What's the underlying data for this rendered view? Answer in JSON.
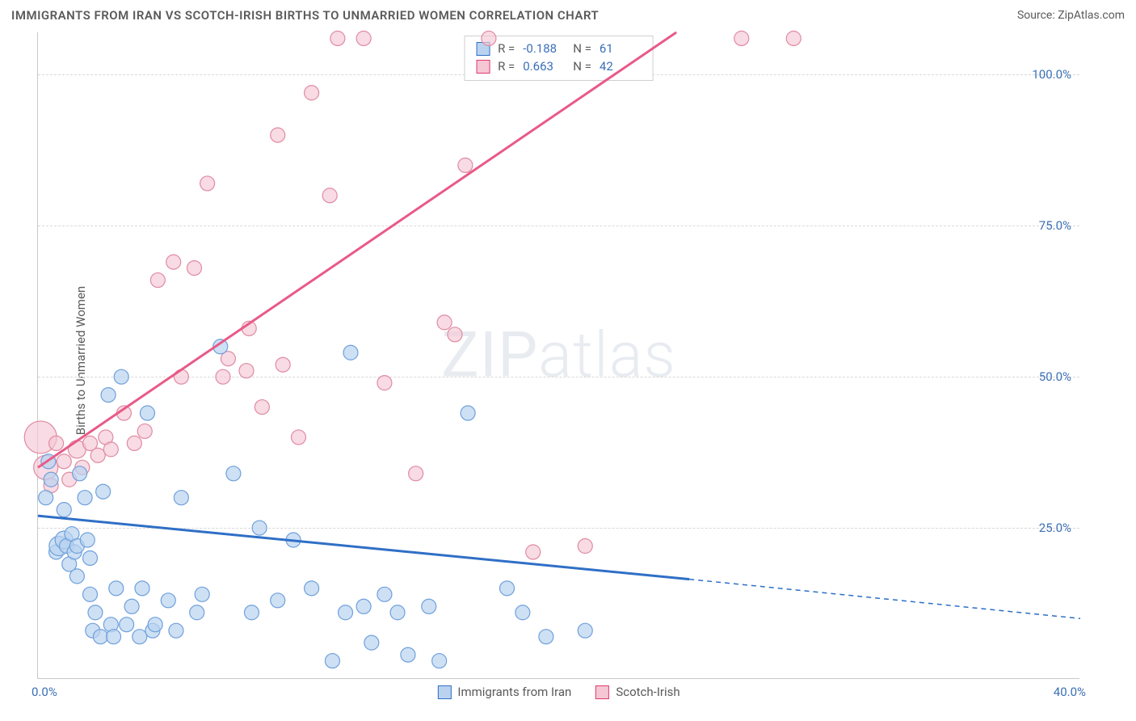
{
  "header": {
    "title": "IMMIGRANTS FROM IRAN VS SCOTCH-IRISH BIRTHS TO UNMARRIED WOMEN CORRELATION CHART",
    "source": "Source: ZipAtlas.com"
  },
  "watermark_a": "ZIP",
  "watermark_b": "atlas",
  "chart": {
    "type": "scatter",
    "background_color": "#ffffff",
    "grid_color": "#d9d9d9",
    "axis_color": "#c8c8c8",
    "ylabel": "Births to Unmarried Women",
    "ylabel_fontsize": 15,
    "tick_fontsize": 15,
    "tick_color": "#3b6fb6",
    "xlim": [
      0,
      40
    ],
    "ylim": [
      0,
      107
    ],
    "x_ticks": [
      {
        "v": 0,
        "label": "0.0%"
      },
      {
        "v": 40,
        "label": "40.0%"
      }
    ],
    "y_ticks": [
      {
        "v": 25,
        "label": "25.0%"
      },
      {
        "v": 50,
        "label": "50.0%"
      },
      {
        "v": 75,
        "label": "75.0%"
      },
      {
        "v": 100,
        "label": "100.0%"
      }
    ],
    "stats": [
      {
        "swatch_fill": "#b9d3ef",
        "swatch_stroke": "#2f6fc6",
        "r": "-0.188",
        "n": "61"
      },
      {
        "swatch_fill": "#f5c7d5",
        "swatch_stroke": "#e03a6d",
        "r": "0.663",
        "n": "42"
      }
    ],
    "legend": [
      {
        "swatch_fill": "#b9d3ef",
        "swatch_stroke": "#2f6fc6",
        "label": "Immigrants from Iran"
      },
      {
        "swatch_fill": "#f5c7d5",
        "swatch_stroke": "#e03a6d",
        "label": "Scotch-Irish"
      }
    ],
    "series_blue": {
      "point_fill": "#b9d3ef",
      "point_stroke": "#6fa0db",
      "point_fill_opacity": 0.7,
      "default_r": 9,
      "trend": {
        "color": "#2f6fc6",
        "width": 3,
        "x1": 0,
        "y1": 27,
        "x2_solid": 25,
        "y2_solid": 16.5,
        "x2": 40,
        "y2": 10
      },
      "points": [
        {
          "x": 0.3,
          "y": 30
        },
        {
          "x": 0.4,
          "y": 36
        },
        {
          "x": 0.5,
          "y": 33
        },
        {
          "x": 0.7,
          "y": 21
        },
        {
          "x": 0.8,
          "y": 22,
          "r": 12
        },
        {
          "x": 1.0,
          "y": 23,
          "r": 11
        },
        {
          "x": 1.0,
          "y": 28
        },
        {
          "x": 1.1,
          "y": 22
        },
        {
          "x": 1.2,
          "y": 19
        },
        {
          "x": 1.3,
          "y": 24
        },
        {
          "x": 1.4,
          "y": 21
        },
        {
          "x": 1.5,
          "y": 22
        },
        {
          "x": 1.5,
          "y": 17
        },
        {
          "x": 1.6,
          "y": 34
        },
        {
          "x": 1.8,
          "y": 30
        },
        {
          "x": 1.9,
          "y": 23
        },
        {
          "x": 2.0,
          "y": 14
        },
        {
          "x": 2.0,
          "y": 20
        },
        {
          "x": 2.1,
          "y": 8
        },
        {
          "x": 2.2,
          "y": 11
        },
        {
          "x": 2.4,
          "y": 7
        },
        {
          "x": 2.5,
          "y": 31
        },
        {
          "x": 2.7,
          "y": 47
        },
        {
          "x": 2.8,
          "y": 9
        },
        {
          "x": 2.9,
          "y": 7
        },
        {
          "x": 3.0,
          "y": 15
        },
        {
          "x": 3.2,
          "y": 50
        },
        {
          "x": 3.4,
          "y": 9
        },
        {
          "x": 3.6,
          "y": 12
        },
        {
          "x": 3.9,
          "y": 7
        },
        {
          "x": 4.0,
          "y": 15
        },
        {
          "x": 4.2,
          "y": 44
        },
        {
          "x": 4.4,
          "y": 8
        },
        {
          "x": 4.5,
          "y": 9
        },
        {
          "x": 5.0,
          "y": 13
        },
        {
          "x": 5.3,
          "y": 8
        },
        {
          "x": 5.5,
          "y": 30
        },
        {
          "x": 6.1,
          "y": 11
        },
        {
          "x": 6.3,
          "y": 14
        },
        {
          "x": 7.0,
          "y": 55
        },
        {
          "x": 7.5,
          "y": 34
        },
        {
          "x": 8.2,
          "y": 11
        },
        {
          "x": 8.5,
          "y": 25
        },
        {
          "x": 9.2,
          "y": 13
        },
        {
          "x": 9.8,
          "y": 23
        },
        {
          "x": 10.5,
          "y": 15
        },
        {
          "x": 11.3,
          "y": 3
        },
        {
          "x": 11.8,
          "y": 11
        },
        {
          "x": 12.0,
          "y": 54
        },
        {
          "x": 12.5,
          "y": 12
        },
        {
          "x": 12.8,
          "y": 6
        },
        {
          "x": 13.3,
          "y": 14
        },
        {
          "x": 13.8,
          "y": 11
        },
        {
          "x": 14.2,
          "y": 4
        },
        {
          "x": 15.0,
          "y": 12
        },
        {
          "x": 15.4,
          "y": 3
        },
        {
          "x": 16.5,
          "y": 44
        },
        {
          "x": 18.0,
          "y": 15
        },
        {
          "x": 18.6,
          "y": 11
        },
        {
          "x": 19.5,
          "y": 7
        },
        {
          "x": 21.0,
          "y": 8
        }
      ]
    },
    "series_pink": {
      "point_fill": "#f5c7d5",
      "point_stroke": "#e08aa3",
      "point_fill_opacity": 0.65,
      "default_r": 9,
      "trend": {
        "color": "#e85a88",
        "width": 3,
        "x1": 0,
        "y1": 35,
        "x2": 24.5,
        "y2": 107
      },
      "points": [
        {
          "x": 0.1,
          "y": 40,
          "r": 20
        },
        {
          "x": 0.3,
          "y": 35,
          "r": 15
        },
        {
          "x": 0.5,
          "y": 32
        },
        {
          "x": 0.7,
          "y": 39
        },
        {
          "x": 1.0,
          "y": 36
        },
        {
          "x": 1.2,
          "y": 33
        },
        {
          "x": 1.5,
          "y": 38,
          "r": 11
        },
        {
          "x": 1.7,
          "y": 35
        },
        {
          "x": 2.0,
          "y": 39
        },
        {
          "x": 2.3,
          "y": 37
        },
        {
          "x": 2.6,
          "y": 40
        },
        {
          "x": 2.8,
          "y": 38
        },
        {
          "x": 3.3,
          "y": 44
        },
        {
          "x": 3.7,
          "y": 39
        },
        {
          "x": 4.1,
          "y": 41
        },
        {
          "x": 4.6,
          "y": 66
        },
        {
          "x": 5.2,
          "y": 69
        },
        {
          "x": 5.5,
          "y": 50
        },
        {
          "x": 6.0,
          "y": 68
        },
        {
          "x": 6.5,
          "y": 82
        },
        {
          "x": 7.1,
          "y": 50
        },
        {
          "x": 7.3,
          "y": 53
        },
        {
          "x": 8.0,
          "y": 51
        },
        {
          "x": 8.1,
          "y": 58
        },
        {
          "x": 8.6,
          "y": 45
        },
        {
          "x": 9.2,
          "y": 90
        },
        {
          "x": 9.4,
          "y": 52
        },
        {
          "x": 10.0,
          "y": 40
        },
        {
          "x": 10.5,
          "y": 97
        },
        {
          "x": 11.2,
          "y": 80
        },
        {
          "x": 11.5,
          "y": 106
        },
        {
          "x": 12.5,
          "y": 106
        },
        {
          "x": 13.3,
          "y": 49
        },
        {
          "x": 14.5,
          "y": 34
        },
        {
          "x": 15.6,
          "y": 59
        },
        {
          "x": 16.0,
          "y": 57
        },
        {
          "x": 16.4,
          "y": 85
        },
        {
          "x": 17.3,
          "y": 106
        },
        {
          "x": 19.0,
          "y": 21
        },
        {
          "x": 21.0,
          "y": 22
        },
        {
          "x": 27.0,
          "y": 106
        },
        {
          "x": 29.0,
          "y": 106
        }
      ]
    }
  }
}
